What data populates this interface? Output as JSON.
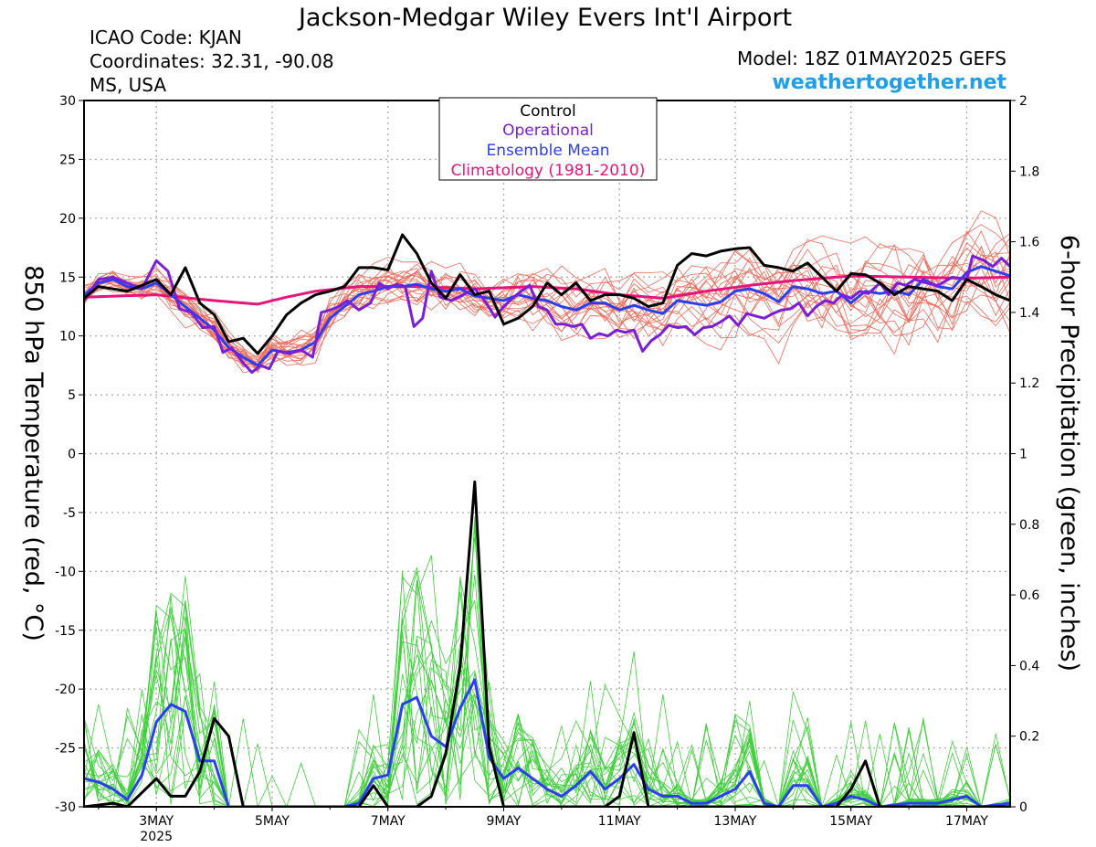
{
  "header": {
    "title": "Jackson-Medgar Wiley Evers Int'l Airport",
    "icao": "ICAO Code: KJAN",
    "coords": "Coordinates: 32.31, -90.08",
    "region": "MS, USA",
    "model": "Model: 18Z 01MAY2025 GEFS",
    "site": "weathertogether.net"
  },
  "legend": {
    "items": [
      {
        "label": "Control",
        "color": "#000000"
      },
      {
        "label": "Operational",
        "color": "#7a1fd6"
      },
      {
        "label": "Ensemble Mean",
        "color": "#2b3ff0"
      },
      {
        "label": "Climatology (1981-2010)",
        "color": "#e8147c"
      }
    ],
    "placement": "top-center"
  },
  "colors": {
    "control": "#000000",
    "operational": "#7a1fd6",
    "mean": "#2b3ff0",
    "climatology": "#e8147c",
    "members_temp": "#f06a5a",
    "members_precip": "#3ecf3a",
    "site": "#1e9fe8"
  },
  "chart_data": {
    "type": "line",
    "ylabel": "850 hPa Temperature (red, °C)",
    "ylabel2": "6-hour Precipitation (green, inches)",
    "xlim": [
      1.75,
      17.75
    ],
    "ylim": [
      -30,
      30
    ],
    "ylim2": [
      0,
      2
    ],
    "grid": true,
    "x_ticks": [
      {
        "x": 3,
        "label": "3MAY",
        "sub": "2025"
      },
      {
        "x": 5,
        "label": "5MAY"
      },
      {
        "x": 7,
        "label": "7MAY"
      },
      {
        "x": 9,
        "label": "9MAY"
      },
      {
        "x": 11,
        "label": "11MAY"
      },
      {
        "x": 13,
        "label": "13MAY"
      },
      {
        "x": 15,
        "label": "15MAY"
      },
      {
        "x": 17,
        "label": "17MAY"
      }
    ],
    "y_ticks": [
      30,
      25,
      20,
      15,
      10,
      5,
      0,
      -5,
      -10,
      -15,
      -20,
      -25,
      -30
    ],
    "y2_ticks": [
      "2",
      "1.8",
      "1.6",
      "1.4",
      "1.2",
      "1",
      "0.8",
      "0.6",
      "0.4",
      "0.2",
      "0"
    ],
    "temperature": {
      "control": [
        [
          1.75,
          13.2
        ],
        [
          2,
          14.2
        ],
        [
          2.5,
          13.8
        ],
        [
          3,
          14.8
        ],
        [
          3.25,
          13.5
        ],
        [
          3.5,
          15.8
        ],
        [
          3.75,
          12.8
        ],
        [
          4,
          11.8
        ],
        [
          4.25,
          9.5
        ],
        [
          4.5,
          9.8
        ],
        [
          4.75,
          8.5
        ],
        [
          5,
          10
        ],
        [
          5.25,
          11.8
        ],
        [
          5.5,
          12.8
        ],
        [
          5.75,
          13.5
        ],
        [
          6,
          13.8
        ],
        [
          6.25,
          14.2
        ],
        [
          6.5,
          15.8
        ],
        [
          6.75,
          15.8
        ],
        [
          7,
          15.6
        ],
        [
          7.25,
          18.6
        ],
        [
          7.5,
          17
        ],
        [
          7.75,
          14.5
        ],
        [
          8,
          13.2
        ],
        [
          8.25,
          15.2
        ],
        [
          8.5,
          13.5
        ],
        [
          8.75,
          13.8
        ],
        [
          9,
          11
        ],
        [
          9.25,
          11.5
        ],
        [
          9.5,
          12.5
        ],
        [
          9.75,
          14.5
        ],
        [
          10,
          13.5
        ],
        [
          10.25,
          14.5
        ],
        [
          10.5,
          13
        ],
        [
          10.75,
          13.5
        ],
        [
          11,
          13.5
        ],
        [
          11.25,
          13.2
        ],
        [
          11.5,
          12.5
        ],
        [
          11.75,
          12.8
        ],
        [
          12,
          16
        ],
        [
          12.25,
          17
        ],
        [
          12.5,
          16.8
        ],
        [
          12.75,
          17.2
        ],
        [
          13,
          17.4
        ],
        [
          13.25,
          17.5
        ],
        [
          13.5,
          16
        ],
        [
          13.75,
          15.8
        ],
        [
          14,
          15.5
        ],
        [
          14.25,
          16.2
        ],
        [
          14.5,
          15
        ],
        [
          14.75,
          13.8
        ],
        [
          15,
          15.3
        ],
        [
          15.25,
          15.2
        ],
        [
          15.5,
          14.5
        ],
        [
          15.75,
          13.5
        ],
        [
          16,
          14.2
        ],
        [
          16.25,
          14
        ],
        [
          16.5,
          13.8
        ],
        [
          16.75,
          13
        ],
        [
          17,
          14.8
        ],
        [
          17.25,
          14.2
        ],
        [
          17.5,
          13.5
        ],
        [
          17.75,
          13
        ]
      ],
      "operational": [
        [
          1.75,
          13
        ],
        [
          2,
          14.8
        ],
        [
          2.25,
          15
        ],
        [
          2.5,
          14.5
        ],
        [
          2.75,
          14
        ],
        [
          3,
          16.4
        ],
        [
          3.2,
          15.5
        ],
        [
          3.4,
          12.3
        ],
        [
          3.6,
          12
        ],
        [
          3.8,
          10.7
        ],
        [
          4,
          10.8
        ],
        [
          4.15,
          8.6
        ],
        [
          4.3,
          9
        ],
        [
          4.5,
          7.7
        ],
        [
          4.65,
          6.9
        ],
        [
          4.8,
          7.5
        ],
        [
          4.95,
          7.2
        ],
        [
          5.1,
          8.7
        ],
        [
          5.3,
          8.5
        ],
        [
          5.5,
          8.8
        ],
        [
          5.7,
          8.2
        ],
        [
          5.85,
          12
        ],
        [
          6,
          12.2
        ],
        [
          6.15,
          12.5
        ],
        [
          6.3,
          13
        ],
        [
          6.5,
          12.2
        ],
        [
          6.7,
          12.8
        ],
        [
          6.85,
          14.5
        ],
        [
          7,
          14
        ],
        [
          7.15,
          14.4
        ],
        [
          7.3,
          14.2
        ],
        [
          7.45,
          10.8
        ],
        [
          7.6,
          11.5
        ],
        [
          7.75,
          15.5
        ],
        [
          7.9,
          13.3
        ],
        [
          8.1,
          13
        ],
        [
          8.3,
          13.5
        ],
        [
          8.5,
          14
        ],
        [
          8.7,
          12.8
        ],
        [
          8.85,
          11.6
        ],
        [
          9,
          12.5
        ],
        [
          9.15,
          13.2
        ],
        [
          9.3,
          13.8
        ],
        [
          9.45,
          14.3
        ],
        [
          9.6,
          12.5
        ],
        [
          9.75,
          12.2
        ],
        [
          9.9,
          11
        ],
        [
          10.05,
          11
        ],
        [
          10.2,
          10.8
        ],
        [
          10.35,
          11
        ],
        [
          10.5,
          9.8
        ],
        [
          10.65,
          10.2
        ],
        [
          10.8,
          10
        ],
        [
          10.95,
          10.5
        ],
        [
          11.1,
          10.3
        ],
        [
          11.25,
          10.5
        ],
        [
          11.4,
          8.7
        ],
        [
          11.55,
          9.6
        ],
        [
          11.7,
          10.1
        ],
        [
          11.85,
          10.9
        ],
        [
          12,
          10.7
        ],
        [
          12.15,
          10.8
        ],
        [
          12.3,
          10.1
        ],
        [
          12.45,
          10.7
        ],
        [
          12.6,
          10.8
        ],
        [
          12.75,
          11.2
        ],
        [
          12.9,
          11.7
        ],
        [
          13.05,
          10.9
        ],
        [
          13.2,
          11.9
        ],
        [
          13.35,
          11.7
        ],
        [
          13.5,
          11.5
        ],
        [
          13.65,
          11.9
        ],
        [
          13.8,
          12.2
        ],
        [
          13.95,
          12.3
        ],
        [
          14.1,
          12.8
        ],
        [
          14.25,
          11.7
        ],
        [
          14.4,
          12.5
        ],
        [
          14.55,
          13
        ],
        [
          14.7,
          12.8
        ],
        [
          14.85,
          13.5
        ],
        [
          15,
          13.2
        ],
        [
          15.15,
          13.8
        ],
        [
          15.3,
          13.6
        ],
        [
          15.5,
          14.5
        ],
        [
          15.65,
          13.5
        ],
        [
          15.8,
          14.5
        ],
        [
          15.95,
          14.3
        ],
        [
          16.1,
          14.8
        ],
        [
          16.3,
          14.5
        ],
        [
          16.5,
          14.3
        ],
        [
          16.75,
          15
        ],
        [
          17,
          14.8
        ],
        [
          17.1,
          16.8
        ],
        [
          17.3,
          16.4
        ],
        [
          17.45,
          15.9
        ],
        [
          17.6,
          16.6
        ],
        [
          17.75,
          15.9
        ]
      ],
      "mean": [
        [
          1.75,
          13.5
        ],
        [
          2,
          14.5
        ],
        [
          2.25,
          14.8
        ],
        [
          2.5,
          14.2
        ],
        [
          2.75,
          14
        ],
        [
          3,
          14.5
        ],
        [
          3.25,
          13.5
        ],
        [
          3.5,
          12.5
        ],
        [
          3.75,
          11.5
        ],
        [
          4,
          10.5
        ],
        [
          4.25,
          9
        ],
        [
          4.5,
          8.2
        ],
        [
          4.75,
          7.5
        ],
        [
          5,
          8.8
        ],
        [
          5.25,
          8.6
        ],
        [
          5.5,
          8.8
        ],
        [
          5.75,
          9.5
        ],
        [
          6,
          11.5
        ],
        [
          6.25,
          12.5
        ],
        [
          6.5,
          13.5
        ],
        [
          6.75,
          13.8
        ],
        [
          7,
          14.2
        ],
        [
          7.25,
          14.2
        ],
        [
          7.5,
          14.4
        ],
        [
          7.75,
          14
        ],
        [
          8,
          13.8
        ],
        [
          8.25,
          14
        ],
        [
          8.5,
          13.4
        ],
        [
          8.75,
          13.2
        ],
        [
          9,
          13
        ],
        [
          9.25,
          13.5
        ],
        [
          9.5,
          13.2
        ],
        [
          9.75,
          13
        ],
        [
          10,
          12.5
        ],
        [
          10.25,
          12.2
        ],
        [
          10.5,
          12.8
        ],
        [
          10.75,
          12.8
        ],
        [
          11,
          12.2
        ],
        [
          11.25,
          12.6
        ],
        [
          11.5,
          12.2
        ],
        [
          11.75,
          11.9
        ],
        [
          12,
          13
        ],
        [
          12.25,
          12.8
        ],
        [
          12.5,
          12.6
        ],
        [
          12.75,
          12.9
        ],
        [
          13,
          13.8
        ],
        [
          13.25,
          14
        ],
        [
          13.5,
          13.6
        ],
        [
          13.75,
          12.9
        ],
        [
          14,
          14.2
        ],
        [
          14.25,
          14
        ],
        [
          14.5,
          13.6
        ],
        [
          14.75,
          13.8
        ],
        [
          15,
          12.8
        ],
        [
          15.25,
          13.8
        ],
        [
          15.5,
          13.6
        ],
        [
          15.75,
          13.8
        ],
        [
          16,
          13.5
        ],
        [
          16.25,
          14.8
        ],
        [
          16.5,
          14.2
        ],
        [
          16.75,
          14
        ],
        [
          17,
          15.4
        ],
        [
          17.25,
          15.9
        ],
        [
          17.5,
          15.5
        ],
        [
          17.75,
          15.1
        ]
      ],
      "climatology": [
        [
          1.75,
          13.3
        ],
        [
          3,
          13.5
        ],
        [
          4,
          13
        ],
        [
          4.75,
          12.7
        ],
        [
          5.25,
          13.3
        ],
        [
          5.75,
          13.8
        ],
        [
          6.5,
          14.2
        ],
        [
          7.5,
          14.2
        ],
        [
          8.5,
          14
        ],
        [
          9.5,
          14.2
        ],
        [
          10.25,
          14
        ],
        [
          11,
          13.5
        ],
        [
          11.75,
          13.2
        ],
        [
          12.5,
          13.8
        ],
        [
          13.25,
          14.3
        ],
        [
          14,
          14.7
        ],
        [
          15,
          15.1
        ],
        [
          16,
          15
        ],
        [
          17,
          14.9
        ],
        [
          17.75,
          15
        ]
      ]
    },
    "precipitation": {
      "control": [
        [
          1.75,
          0
        ],
        [
          2.25,
          0.01
        ],
        [
          2.5,
          0.0
        ],
        [
          3,
          0.08
        ],
        [
          3.25,
          0.03
        ],
        [
          3.5,
          0.03
        ],
        [
          3.75,
          0.1
        ],
        [
          4,
          0.25
        ],
        [
          4.25,
          0.2
        ],
        [
          4.5,
          0
        ],
        [
          6.5,
          0
        ],
        [
          6.75,
          0.06
        ],
        [
          7,
          0
        ],
        [
          7.5,
          0
        ],
        [
          7.75,
          0.03
        ],
        [
          8,
          0.15
        ],
        [
          8.25,
          0.4
        ],
        [
          8.5,
          0.92
        ],
        [
          8.75,
          0.17
        ],
        [
          9,
          0
        ],
        [
          10.75,
          0
        ],
        [
          11,
          0.03
        ],
        [
          11.25,
          0.21
        ],
        [
          11.5,
          0
        ],
        [
          14.75,
          0
        ],
        [
          15,
          0.05
        ],
        [
          15.25,
          0.13
        ],
        [
          15.5,
          0
        ],
        [
          17.75,
          0
        ]
      ],
      "mean": [
        [
          1.75,
          0.08
        ],
        [
          2,
          0.07
        ],
        [
          2.25,
          0.05
        ],
        [
          2.5,
          0.02
        ],
        [
          2.75,
          0.09
        ],
        [
          3,
          0.24
        ],
        [
          3.25,
          0.29
        ],
        [
          3.5,
          0.27
        ],
        [
          3.75,
          0.13
        ],
        [
          4,
          0.13
        ],
        [
          4.25,
          0.0
        ],
        [
          6.25,
          0.0
        ],
        [
          6.5,
          0.01
        ],
        [
          6.75,
          0.08
        ],
        [
          7,
          0.09
        ],
        [
          7.25,
          0.29
        ],
        [
          7.5,
          0.31
        ],
        [
          7.75,
          0.2
        ],
        [
          8,
          0.17
        ],
        [
          8.25,
          0.28
        ],
        [
          8.5,
          0.36
        ],
        [
          8.75,
          0.14
        ],
        [
          9,
          0.08
        ],
        [
          9.25,
          0.11
        ],
        [
          9.5,
          0.08
        ],
        [
          9.75,
          0.05
        ],
        [
          10,
          0.03
        ],
        [
          10.25,
          0.06
        ],
        [
          10.5,
          0.1
        ],
        [
          10.75,
          0.05
        ],
        [
          11,
          0.08
        ],
        [
          11.25,
          0.12
        ],
        [
          11.5,
          0.05
        ],
        [
          11.75,
          0.03
        ],
        [
          12,
          0.03
        ],
        [
          12.25,
          0.01
        ],
        [
          12.5,
          0.01
        ],
        [
          12.75,
          0.03
        ],
        [
          13,
          0.05
        ],
        [
          13.25,
          0.1
        ],
        [
          13.5,
          0.01
        ],
        [
          13.75,
          0.0
        ],
        [
          14,
          0.06
        ],
        [
          14.25,
          0.06
        ],
        [
          14.5,
          0.0
        ],
        [
          14.75,
          0.01
        ],
        [
          15,
          0.03
        ],
        [
          15.25,
          0.02
        ],
        [
          15.5,
          0.0
        ],
        [
          16,
          0.01
        ],
        [
          16.25,
          0.01
        ],
        [
          16.5,
          0.01
        ],
        [
          17,
          0.03
        ],
        [
          17.25,
          0.0
        ],
        [
          17.75,
          0.01
        ]
      ]
    }
  }
}
